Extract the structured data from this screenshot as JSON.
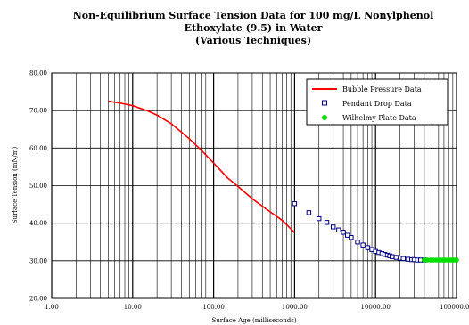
{
  "chart_data": {
    "type": "line",
    "title": [
      "Non-Equilibrium Surface Tension Data for 100 mg/L Nonylphenol",
      "Ethoxylate (9.5) in Water",
      "(Various Techniques)"
    ],
    "xlabel": "Surface Age (milliseconds)",
    "ylabel": "Surface Tension (mN/m)",
    "x_scale": "log",
    "xlim": [
      1,
      100000
    ],
    "ylim": [
      20,
      80
    ],
    "x_ticks": [
      1,
      10,
      100,
      1000,
      10000,
      100000
    ],
    "x_tick_labels": [
      "1.00",
      "10.00",
      "100.00",
      "1000.00",
      "10000.00",
      "100000.00"
    ],
    "y_ticks": [
      20,
      30,
      40,
      50,
      60,
      70,
      80
    ],
    "y_tick_labels": [
      "20.00",
      "30.00",
      "40.00",
      "50.00",
      "60.00",
      "70.00",
      "80.00"
    ],
    "grid": true,
    "legend_position": "top-right",
    "series": [
      {
        "name": "Bubble Pressure Data",
        "style": "line",
        "color": "#ff0000",
        "x": [
          5,
          7,
          10,
          15,
          20,
          30,
          50,
          70,
          100,
          150,
          200,
          300,
          500,
          700,
          1000
        ],
        "y": [
          72.5,
          72.0,
          71.3,
          70.0,
          68.8,
          66.5,
          62.5,
          59.5,
          56.0,
          52.0,
          49.8,
          46.5,
          43.0,
          40.8,
          37.5
        ]
      },
      {
        "name": "Pendant Drop Data",
        "style": "square",
        "color": "#000080",
        "x": [
          1000,
          1500,
          2000,
          2500,
          3000,
          3500,
          4000,
          4500,
          5000,
          6000,
          7000,
          8000,
          9000,
          10000,
          11000,
          12000,
          13000,
          14000,
          15000,
          16000,
          18000,
          20000,
          22000,
          25000,
          28000,
          30000,
          33000,
          36000,
          40000
        ],
        "y": [
          45.2,
          42.8,
          41.2,
          40.2,
          39.0,
          38.2,
          37.6,
          36.8,
          36.2,
          35.0,
          34.2,
          33.5,
          33.0,
          32.5,
          32.2,
          31.9,
          31.7,
          31.5,
          31.3,
          31.1,
          30.9,
          30.7,
          30.6,
          30.4,
          30.3,
          30.3,
          30.2,
          30.2,
          30.2
        ]
      },
      {
        "name": "Wilhelmy Plate Data",
        "style": "circle",
        "color": "#00e000",
        "x": [
          40000,
          44000,
          48000,
          52000,
          56000,
          60000,
          64000,
          68000,
          72000,
          76000,
          80000,
          84000,
          88000,
          92000,
          96000,
          100000
        ],
        "y": [
          30.2,
          30.2,
          30.2,
          30.2,
          30.2,
          30.2,
          30.2,
          30.2,
          30.2,
          30.2,
          30.2,
          30.2,
          30.2,
          30.2,
          30.2,
          30.2
        ]
      }
    ]
  }
}
